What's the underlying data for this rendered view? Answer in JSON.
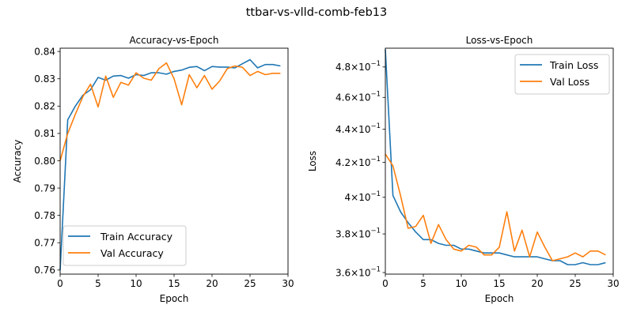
{
  "figure": {
    "title": "ttbar-vs-vlld-comb-feb13"
  },
  "colors": {
    "train": "#1f77b4",
    "val": "#ff7f0e",
    "axes": "#000000",
    "legend_border": "#cccccc"
  },
  "chart_data": [
    {
      "type": "line",
      "title": "Accuracy-vs-Epoch",
      "xlabel": "Epoch",
      "ylabel": "Accuracy",
      "xlim": [
        0,
        30
      ],
      "ylim": [
        0.7585,
        0.8412
      ],
      "xticks": [
        0,
        5,
        10,
        15,
        20,
        25,
        30
      ],
      "yticks": [
        {
          "v": 0.76,
          "label": "0.76"
        },
        {
          "v": 0.77,
          "label": "0.77"
        },
        {
          "v": 0.78,
          "label": "0.78"
        },
        {
          "v": 0.79,
          "label": "0.79"
        },
        {
          "v": 0.8,
          "label": "0.80"
        },
        {
          "v": 0.81,
          "label": "0.81"
        },
        {
          "v": 0.82,
          "label": "0.82"
        },
        {
          "v": 0.83,
          "label": "0.83"
        },
        {
          "v": 0.84,
          "label": "0.84"
        }
      ],
      "log_y": false,
      "grid": false,
      "legend_position": "lower-left",
      "x": [
        0,
        1,
        2,
        3,
        4,
        5,
        6,
        7,
        8,
        9,
        10,
        11,
        12,
        13,
        14,
        15,
        16,
        17,
        18,
        19,
        20,
        21,
        22,
        23,
        24,
        25,
        26,
        27,
        28,
        29
      ],
      "series": [
        {
          "name": "Train Accuracy",
          "color": "#1f77b4",
          "values": [
            0.76,
            0.815,
            0.82,
            0.824,
            0.826,
            0.8305,
            0.8295,
            0.831,
            0.8312,
            0.8302,
            0.8315,
            0.8312,
            0.8322,
            0.8322,
            0.8317,
            0.8327,
            0.8332,
            0.8342,
            0.8345,
            0.833,
            0.8345,
            0.8343,
            0.8343,
            0.834,
            0.8355,
            0.837,
            0.834,
            0.8352,
            0.8352,
            0.8347
          ]
        },
        {
          "name": "Val Accuracy",
          "color": "#ff7f0e",
          "values": [
            0.8,
            0.81,
            0.817,
            0.8235,
            0.828,
            0.8197,
            0.831,
            0.8232,
            0.8287,
            0.8277,
            0.8322,
            0.8302,
            0.8295,
            0.8337,
            0.8358,
            0.83,
            0.8205,
            0.8315,
            0.8267,
            0.8312,
            0.8262,
            0.8292,
            0.8337,
            0.8347,
            0.8342,
            0.8312,
            0.8327,
            0.8315,
            0.832,
            0.832
          ]
        }
      ]
    },
    {
      "type": "line",
      "title": "Loss-vs-Epoch",
      "xlabel": "Epoch",
      "ylabel": "Loss",
      "xlim": [
        0,
        30
      ],
      "ylim": [
        0.3592,
        0.4928
      ],
      "xticks": [
        0,
        5,
        10,
        15,
        20,
        25,
        30
      ],
      "yticks": [
        {
          "v": 0.36,
          "m": "3.6",
          "e": "−1"
        },
        {
          "v": 0.38,
          "m": "3.8",
          "e": "−1"
        },
        {
          "v": 0.4,
          "m": "4",
          "e": "−1"
        },
        {
          "v": 0.42,
          "m": "4.2",
          "e": "−1"
        },
        {
          "v": 0.44,
          "m": "4.4",
          "e": "−1"
        },
        {
          "v": 0.46,
          "m": "4.6",
          "e": "−1"
        },
        {
          "v": 0.48,
          "m": "4.8",
          "e": "−1"
        }
      ],
      "log_y": true,
      "grid": false,
      "legend_position": "upper-right",
      "x": [
        0,
        1,
        2,
        3,
        4,
        5,
        6,
        7,
        8,
        9,
        10,
        11,
        12,
        13,
        14,
        15,
        16,
        17,
        18,
        19,
        20,
        21,
        22,
        23,
        24,
        25,
        26,
        27,
        28,
        29
      ],
      "series": [
        {
          "name": "Train Loss",
          "color": "#1f77b4",
          "values": [
            0.492,
            0.401,
            0.392,
            0.386,
            0.381,
            0.377,
            0.377,
            0.375,
            0.374,
            0.374,
            0.372,
            0.372,
            0.371,
            0.37,
            0.37,
            0.37,
            0.369,
            0.368,
            0.368,
            0.368,
            0.368,
            0.367,
            0.366,
            0.366,
            0.364,
            0.364,
            0.365,
            0.364,
            0.364,
            0.365
          ]
        },
        {
          "name": "Val Loss",
          "color": "#ff7f0e",
          "values": [
            0.425,
            0.418,
            0.401,
            0.383,
            0.384,
            0.39,
            0.375,
            0.385,
            0.377,
            0.372,
            0.371,
            0.374,
            0.373,
            0.369,
            0.369,
            0.373,
            0.392,
            0.371,
            0.382,
            0.368,
            0.381,
            0.373,
            0.366,
            0.367,
            0.368,
            0.37,
            0.368,
            0.371,
            0.371,
            0.369
          ]
        }
      ]
    }
  ]
}
